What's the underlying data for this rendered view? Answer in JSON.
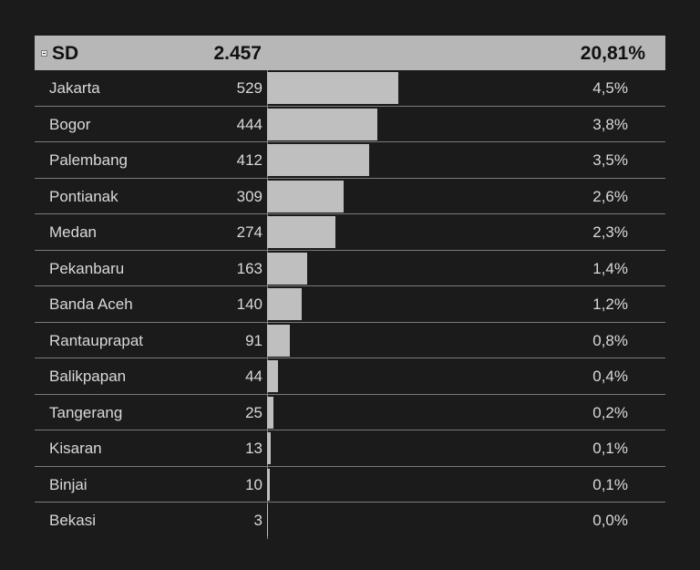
{
  "header": {
    "name": "SD",
    "total": "2.457",
    "percent": "20,81%"
  },
  "chart_data": {
    "type": "bar",
    "orientation": "horizontal",
    "category_label": "SD",
    "total": 2457,
    "total_percent": "20,81%",
    "categories": [
      "Jakarta",
      "Bogor",
      "Palembang",
      "Pontianak",
      "Medan",
      "Pekanbaru",
      "Banda Aceh",
      "Rantauprapat",
      "Balikpapan",
      "Tangerang",
      "Kisaran",
      "Binjai",
      "Bekasi"
    ],
    "values": [
      529,
      444,
      412,
      309,
      274,
      163,
      140,
      91,
      44,
      25,
      13,
      10,
      3
    ],
    "percent_labels": [
      "4,5%",
      "3,8%",
      "3,5%",
      "2,6%",
      "2,3%",
      "1,4%",
      "1,2%",
      "0,8%",
      "0,4%",
      "0,2%",
      "0,1%",
      "0,1%",
      "0,0%"
    ],
    "colors": {
      "bar": "#bfbfbf",
      "header": "#b7b7b7",
      "background": "#1b1b1b"
    }
  }
}
